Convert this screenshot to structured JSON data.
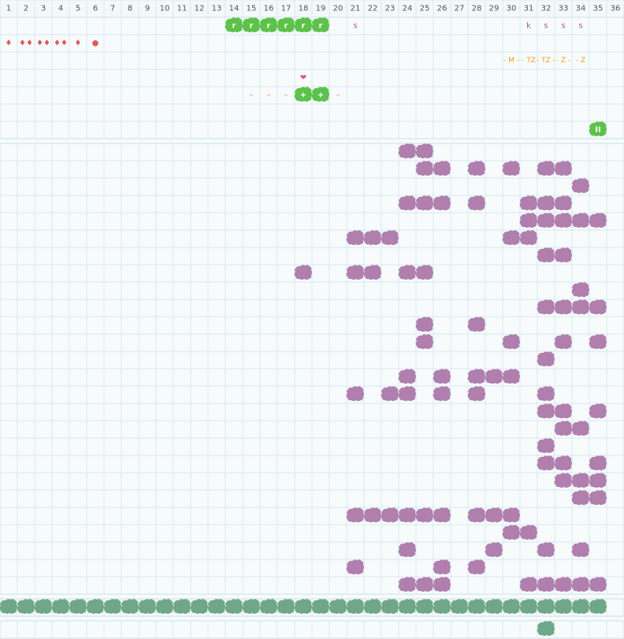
{
  "columns": [
    1,
    2,
    3,
    4,
    5,
    6,
    7,
    8,
    9,
    10,
    11,
    12,
    13,
    14,
    15,
    16,
    17,
    18,
    19,
    20,
    21,
    22,
    23,
    24,
    25,
    26,
    27,
    28,
    29,
    30,
    31,
    32,
    33,
    34,
    35,
    36
  ],
  "top_rows": [
    [
      {
        "col": 14,
        "text": "r",
        "blob": "#5cc24a"
      },
      {
        "col": 15,
        "text": "r",
        "blob": "#5cc24a"
      },
      {
        "col": 16,
        "text": "r",
        "blob": "#5cc24a"
      },
      {
        "col": 17,
        "text": "r",
        "blob": "#5cc24a"
      },
      {
        "col": 18,
        "text": "r",
        "blob": "#5cc24a"
      },
      {
        "col": 19,
        "text": "r",
        "blob": "#5cc24a"
      },
      {
        "col": 21,
        "text": "s",
        "color": "#a06090"
      },
      {
        "col": 31,
        "text": "k",
        "color": "#a06090"
      },
      {
        "col": 32,
        "text": "s",
        "color": "#a06090"
      },
      {
        "col": 33,
        "text": "s",
        "color": "#a06090"
      },
      {
        "col": 34,
        "text": "s",
        "color": "#a06090"
      }
    ],
    [
      {
        "col": 1,
        "text": "♦",
        "color": "#e05a5a"
      },
      {
        "col": 2,
        "text": "♦♦",
        "color": "#e05a5a"
      },
      {
        "col": 3,
        "text": "♦♦",
        "color": "#e05a5a"
      },
      {
        "col": 4,
        "text": "♦♦",
        "color": "#e05a5a"
      },
      {
        "col": 5,
        "text": "♦",
        "color": "#e05a5a"
      },
      {
        "col": 6,
        "text": "●",
        "color": "#e05a5a"
      }
    ],
    [
      {
        "col": 30,
        "text": "- M -",
        "color": "#f0a020"
      },
      {
        "col": 31,
        "text": "- TZ",
        "color": "#f0a020"
      },
      {
        "col": 32,
        "text": "- TZ -",
        "color": "#f0a020"
      },
      {
        "col": 33,
        "text": "- Z -",
        "color": "#f0a020"
      },
      {
        "col": 34,
        "text": "- Z",
        "color": "#f0a020"
      }
    ],
    [
      {
        "col": 18,
        "text": "❤",
        "color": "#e05a7a"
      }
    ],
    [
      {
        "col": 15,
        "text": "–",
        "color": "#f08030"
      },
      {
        "col": 16,
        "text": "–",
        "color": "#f08030"
      },
      {
        "col": 17,
        "text": "–",
        "color": "#f08030"
      },
      {
        "col": 18,
        "text": "+",
        "blob": "#5cc24a"
      },
      {
        "col": 19,
        "text": "+",
        "blob": "#5cc24a"
      },
      {
        "col": 20,
        "text": "–",
        "color": "#f08030"
      }
    ],
    [],
    [
      {
        "col": 35,
        "text": "II",
        "blob": "#5cc24a"
      }
    ]
  ],
  "main_color": "#b07fae",
  "main_rows": [
    [
      24,
      25
    ],
    [
      25,
      26,
      28,
      30,
      32,
      33
    ],
    [
      34
    ],
    [
      24,
      25,
      26,
      28,
      31,
      32,
      33
    ],
    [
      31,
      32,
      33,
      34,
      35
    ],
    [
      21,
      22,
      23,
      30,
      31
    ],
    [
      32,
      33
    ],
    [
      18,
      21,
      22,
      24,
      25
    ],
    [
      34
    ],
    [
      32,
      33,
      34,
      35
    ],
    [
      25,
      28
    ],
    [
      25,
      30,
      33,
      35
    ],
    [
      32
    ],
    [
      24,
      26,
      28,
      29,
      30
    ],
    [
      21,
      23,
      24,
      26,
      28,
      32
    ],
    [
      32,
      33,
      35
    ],
    [
      33,
      34
    ],
    [
      32
    ],
    [
      32,
      33,
      35
    ],
    [
      33,
      34,
      35
    ],
    [
      34,
      35
    ],
    [
      21,
      22,
      23,
      24,
      25,
      26,
      28,
      29,
      30
    ],
    [
      30,
      31
    ],
    [
      24,
      29,
      32,
      34
    ],
    [
      21,
      26,
      28
    ],
    [
      24,
      25,
      26,
      31,
      32,
      33,
      34,
      35
    ]
  ],
  "base_color": "#6fa888",
  "base_row": [
    1,
    2,
    3,
    4,
    5,
    6,
    7,
    8,
    9,
    10,
    11,
    12,
    13,
    14,
    15,
    16,
    17,
    18,
    19,
    20,
    21,
    22,
    23,
    24,
    25,
    26,
    27,
    28,
    29,
    30,
    31,
    32,
    33,
    34,
    35
  ],
  "last_row": [
    32
  ]
}
